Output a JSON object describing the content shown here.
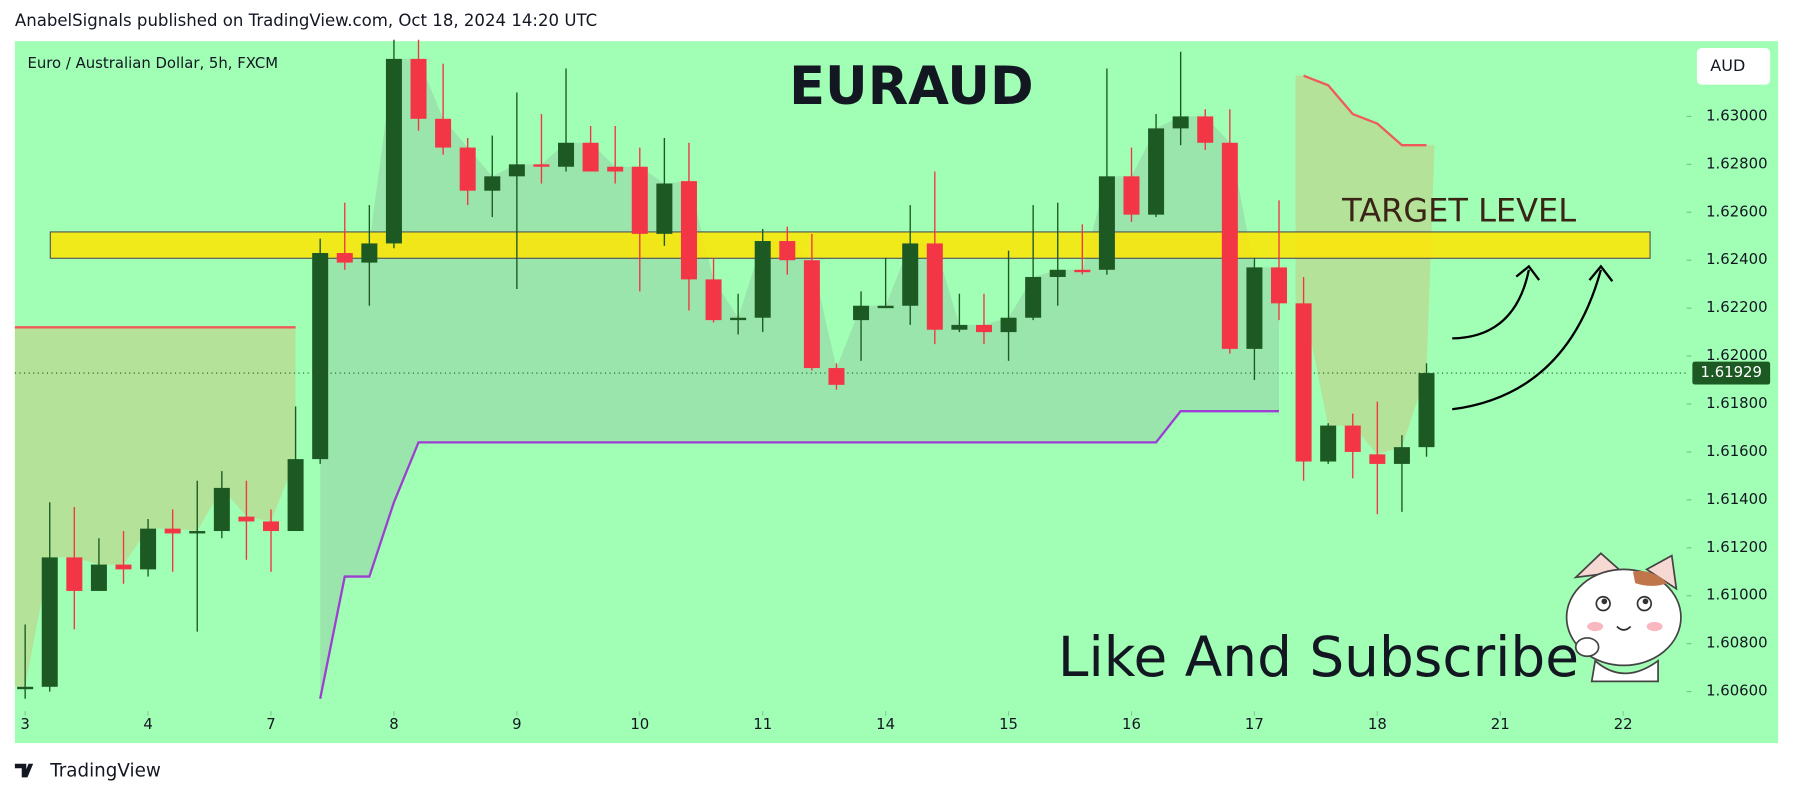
{
  "header": "AnabelSignals published on TradingView.com, Oct 18, 2024 14:20 UTC",
  "footer": "TradingView",
  "chart_data": {
    "type": "candlestick",
    "subtitle": "Euro / Australian Dollar, 5h, FXCM",
    "title": "EURAUD",
    "currency": "AUD",
    "annotations": [
      "TARGET LEVEL",
      "Like And Subscribe"
    ],
    "up_color": "#1d5a23",
    "down_color": "#f23645",
    "background": "#a0ffb5",
    "candles": [
      {
        "open": 1.6061,
        "high": 1.6088,
        "low": 1.6057,
        "close": 1.6062
      },
      {
        "open": 1.6062,
        "high": 1.6139,
        "low": 1.606,
        "close": 1.6116
      },
      {
        "open": 1.6116,
        "high": 1.6137,
        "low": 1.6086,
        "close": 1.6102
      },
      {
        "open": 1.6102,
        "high": 1.6124,
        "low": 1.6102,
        "close": 1.6113
      },
      {
        "open": 1.6113,
        "high": 1.6127,
        "low": 1.6105,
        "close": 1.6111
      },
      {
        "open": 1.6111,
        "high": 1.6132,
        "low": 1.6108,
        "close": 1.6128
      },
      {
        "open": 1.6128,
        "high": 1.6136,
        "low": 1.611,
        "close": 1.6126
      },
      {
        "open": 1.6126,
        "high": 1.6148,
        "low": 1.6085,
        "close": 1.6127
      },
      {
        "open": 1.6127,
        "high": 1.6152,
        "low": 1.6124,
        "close": 1.6145
      },
      {
        "open": 1.6133,
        "high": 1.6148,
        "low": 1.6115,
        "close": 1.6131
      },
      {
        "open": 1.6131,
        "high": 1.6136,
        "low": 1.611,
        "close": 1.6127
      },
      {
        "open": 1.6127,
        "high": 1.6179,
        "low": 1.6127,
        "close": 1.6157
      },
      {
        "open": 1.6157,
        "high": 1.6249,
        "low": 1.6155,
        "close": 1.6243
      },
      {
        "open": 1.6243,
        "high": 1.6264,
        "low": 1.6236,
        "close": 1.6239
      },
      {
        "open": 1.6239,
        "high": 1.6263,
        "low": 1.6221,
        "close": 1.6247
      },
      {
        "open": 1.6247,
        "high": 1.6332,
        "low": 1.6245,
        "close": 1.6324
      },
      {
        "open": 1.6324,
        "high": 1.6332,
        "low": 1.6294,
        "close": 1.6299
      },
      {
        "open": 1.6299,
        "high": 1.6322,
        "low": 1.6284,
        "close": 1.6287
      },
      {
        "open": 1.6287,
        "high": 1.6291,
        "low": 1.6263,
        "close": 1.6269
      },
      {
        "open": 1.6269,
        "high": 1.6292,
        "low": 1.6258,
        "close": 1.6275
      },
      {
        "open": 1.6275,
        "high": 1.631,
        "low": 1.6228,
        "close": 1.628
      },
      {
        "open": 1.628,
        "high": 1.6301,
        "low": 1.6272,
        "close": 1.6279
      },
      {
        "open": 1.6279,
        "high": 1.632,
        "low": 1.6277,
        "close": 1.6289
      },
      {
        "open": 1.6289,
        "high": 1.6296,
        "low": 1.6277,
        "close": 1.6277
      },
      {
        "open": 1.6279,
        "high": 1.6296,
        "low": 1.6272,
        "close": 1.6277
      },
      {
        "open": 1.6279,
        "high": 1.6287,
        "low": 1.6227,
        "close": 1.6251
      },
      {
        "open": 1.6251,
        "high": 1.6291,
        "low": 1.6246,
        "close": 1.6272
      },
      {
        "open": 1.6273,
        "high": 1.6289,
        "low": 1.6219,
        "close": 1.6232
      },
      {
        "open": 1.6232,
        "high": 1.6241,
        "low": 1.6214,
        "close": 1.6215
      },
      {
        "open": 1.6215,
        "high": 1.6226,
        "low": 1.6209,
        "close": 1.6216
      },
      {
        "open": 1.6216,
        "high": 1.6253,
        "low": 1.621,
        "close": 1.6248
      },
      {
        "open": 1.6248,
        "high": 1.6254,
        "low": 1.6234,
        "close": 1.624
      },
      {
        "open": 1.624,
        "high": 1.6251,
        "low": 1.6194,
        "close": 1.6195
      },
      {
        "open": 1.6195,
        "high": 1.6197,
        "low": 1.6186,
        "close": 1.6188
      },
      {
        "open": 1.6215,
        "high": 1.6227,
        "low": 1.6198,
        "close": 1.6221
      },
      {
        "open": 1.622,
        "high": 1.6241,
        "low": 1.622,
        "close": 1.6221
      },
      {
        "open": 1.6221,
        "high": 1.6263,
        "low": 1.6213,
        "close": 1.6247
      },
      {
        "open": 1.6247,
        "high": 1.6277,
        "low": 1.6205,
        "close": 1.6211
      },
      {
        "open": 1.6211,
        "high": 1.6226,
        "low": 1.621,
        "close": 1.6213
      },
      {
        "open": 1.6213,
        "high": 1.6226,
        "low": 1.6205,
        "close": 1.621
      },
      {
        "open": 1.621,
        "high": 1.6244,
        "low": 1.6198,
        "close": 1.6216
      },
      {
        "open": 1.6216,
        "high": 1.6263,
        "low": 1.6215,
        "close": 1.6233
      },
      {
        "open": 1.6233,
        "high": 1.6264,
        "low": 1.6221,
        "close": 1.6236
      },
      {
        "open": 1.6236,
        "high": 1.6255,
        "low": 1.6234,
        "close": 1.6235
      },
      {
        "open": 1.6236,
        "high": 1.632,
        "low": 1.6234,
        "close": 1.6275
      },
      {
        "open": 1.6275,
        "high": 1.6287,
        "low": 1.6256,
        "close": 1.6259
      },
      {
        "open": 1.6259,
        "high": 1.6301,
        "low": 1.6258,
        "close": 1.6295
      },
      {
        "open": 1.6295,
        "high": 1.6327,
        "low": 1.6288,
        "close": 1.63
      },
      {
        "open": 1.63,
        "high": 1.6303,
        "low": 1.6286,
        "close": 1.6289
      },
      {
        "open": 1.6289,
        "high": 1.6303,
        "low": 1.6201,
        "close": 1.6203
      },
      {
        "open": 1.6203,
        "high": 1.6241,
        "low": 1.619,
        "close": 1.6237
      },
      {
        "open": 1.6237,
        "high": 1.6265,
        "low": 1.6215,
        "close": 1.6222
      },
      {
        "open": 1.6222,
        "high": 1.6233,
        "low": 1.6148,
        "close": 1.6156
      },
      {
        "open": 1.6156,
        "high": 1.6172,
        "low": 1.6155,
        "close": 1.6171
      },
      {
        "open": 1.6171,
        "high": 1.6176,
        "low": 1.6149,
        "close": 1.616
      },
      {
        "open": 1.6159,
        "high": 1.6181,
        "low": 1.6134,
        "close": 1.6155
      },
      {
        "open": 1.6155,
        "high": 1.6167,
        "low": 1.6135,
        "close": 1.6162
      },
      {
        "open": 1.6162,
        "high": 1.6197,
        "low": 1.6158,
        "close": 1.61929
      }
    ],
    "last_price": 1.61929,
    "target_band": [
      1.62408,
      1.62518
    ],
    "indicator_lines": [
      {
        "color": "#f05a5a",
        "points": [
          [
            0,
            1.6212
          ],
          [
            11,
            1.6212
          ]
        ]
      },
      {
        "color": "#9c3fd0",
        "points": [
          [
            12,
            1.6057
          ],
          [
            13,
            1.6108
          ],
          [
            14,
            1.6108
          ],
          [
            15,
            1.6139
          ],
          [
            16,
            1.6164
          ],
          [
            46,
            1.6164
          ],
          [
            47,
            1.6177
          ],
          [
            51,
            1.6177
          ]
        ]
      },
      {
        "color": "#f05a5a",
        "points": [
          [
            52,
            1.6317
          ],
          [
            53,
            1.6313
          ],
          [
            54,
            1.6301
          ],
          [
            55,
            1.6297
          ],
          [
            56,
            1.6288
          ],
          [
            57,
            1.6288
          ]
        ]
      }
    ],
    "ylim": [
      1.60385,
      1.63314
    ],
    "yticks": [
      {
        "value": 1.606,
        "label": "1.60600"
      },
      {
        "value": 1.608,
        "label": "1.60800"
      },
      {
        "value": 1.61,
        "label": "1.61000"
      },
      {
        "value": 1.612,
        "label": "1.61200"
      },
      {
        "value": 1.614,
        "label": "1.61400"
      },
      {
        "value": 1.616,
        "label": "1.61600"
      },
      {
        "value": 1.618,
        "label": "1.61800"
      },
      {
        "value": 1.62,
        "label": "1.62000"
      },
      {
        "value": 1.622,
        "label": "1.62200"
      },
      {
        "value": 1.624,
        "label": "1.62400"
      },
      {
        "value": 1.626,
        "label": "1.62600"
      },
      {
        "value": 1.628,
        "label": "1.62800"
      },
      {
        "value": 1.63,
        "label": "1.63000"
      }
    ],
    "xticks": [
      {
        "value": 0,
        "label": "3"
      },
      {
        "value": 5,
        "label": "4"
      },
      {
        "value": 10,
        "label": "7"
      },
      {
        "value": 15,
        "label": "8"
      },
      {
        "value": 20,
        "label": "9"
      },
      {
        "value": 25,
        "label": "10"
      },
      {
        "value": 30,
        "label": "11"
      },
      {
        "value": 35,
        "label": "14"
      },
      {
        "value": 40,
        "label": "15"
      },
      {
        "value": 45,
        "label": "16"
      },
      {
        "value": 50,
        "label": "17"
      },
      {
        "value": 55,
        "label": "18"
      },
      {
        "value": 60,
        "label": "21"
      },
      {
        "value": 65,
        "label": "22"
      }
    ]
  }
}
